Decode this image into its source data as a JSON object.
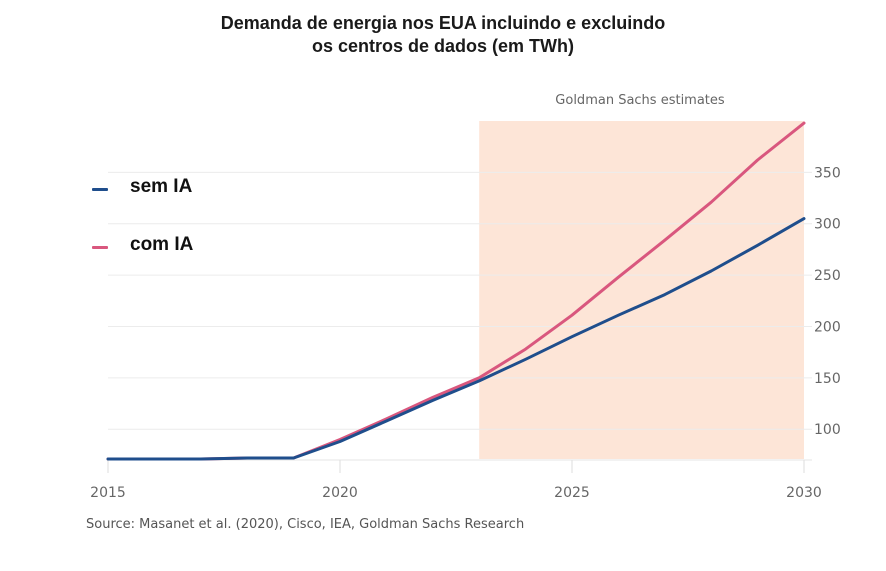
{
  "chart_data": {
    "type": "line",
    "title": "Demanda de energia nos EUA incluindo e excluindo os centros de dados (em TWh)",
    "title_lines": [
      "Demanda de energia nos EUA incluindo e excluindo",
      "os centros de dados (em TWh)"
    ],
    "xlabel": "",
    "ylabel": "",
    "x": [
      2015,
      2016,
      2017,
      2018,
      2019,
      2020,
      2021,
      2022,
      2023,
      2024,
      2025,
      2026,
      2027,
      2028,
      2029,
      2030
    ],
    "series": [
      {
        "name": "sem IA",
        "color": "#1f4e8c",
        "values": [
          71,
          71,
          71,
          72,
          72,
          88,
          108,
          128,
          147,
          168,
          190,
          211,
          231,
          254,
          279,
          305
        ]
      },
      {
        "name": "com IA",
        "color": "#d9577e",
        "values": [
          71,
          71,
          71,
          72,
          72,
          90,
          110,
          131,
          150,
          178,
          211,
          248,
          284,
          321,
          362,
          398
        ]
      }
    ],
    "xlim": [
      2015,
      2030
    ],
    "ylim": [
      71,
      400
    ],
    "x_ticks": [
      2015,
      2020,
      2025,
      2030
    ],
    "y_ticks": [
      100,
      150,
      200,
      250,
      300,
      350
    ],
    "y_axis_side": "right",
    "grid": true,
    "legend_position": "left",
    "shaded_region": {
      "x_start": 2023,
      "x_end": 2030,
      "label": "Goldman Sachs estimates",
      "color": "#fde5d7"
    },
    "source": "Source: Masanet et al. (2020), Cisco, IEA, Goldman Sachs Research"
  }
}
